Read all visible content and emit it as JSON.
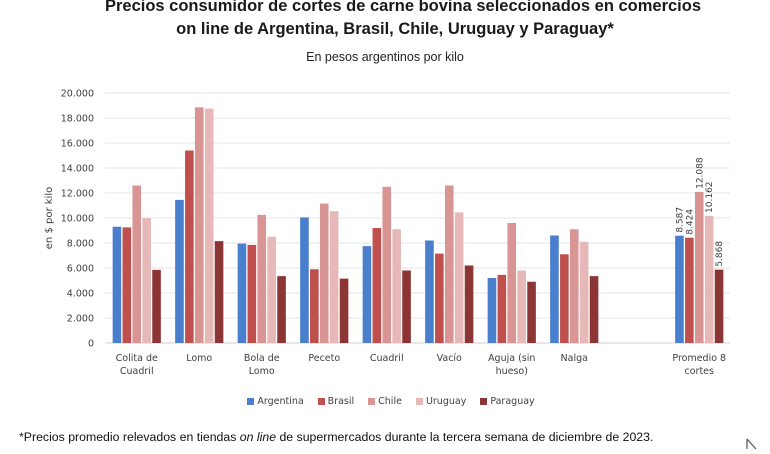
{
  "title_line1": "Precios consumidor de cortes de carne bovina seleccionados en comercios",
  "title_line2": "on line de Argentina, Brasil, Chile, Uruguay y Paraguay*",
  "footnote": {
    "before": "*Precios promedio relevados en tiendas ",
    "italic": "on line",
    "after": " de supermercados durante la tercera semana de diciembre de 2023."
  },
  "chart_data": {
    "type": "bar",
    "title": "Precios consumidor de cortes de carne bovina seleccionados en comercios on line de Argentina, Brasil, Chile, Uruguay y Paraguay*",
    "subtitle": "En pesos argentinos por kilo",
    "xlabel": "",
    "ylabel": "en $ por kilo",
    "ylim": [
      0,
      20000
    ],
    "yticks": [
      0,
      2000,
      4000,
      6000,
      8000,
      10000,
      12000,
      14000,
      16000,
      18000,
      20000
    ],
    "ytick_labels": [
      "0",
      "2.000",
      "4.000",
      "6.000",
      "8.000",
      "10.000",
      "12.000",
      "14.000",
      "16.000",
      "18.000",
      "20.000"
    ],
    "grid": true,
    "legend_position": "bottom",
    "categories": [
      [
        "Colita de",
        "Cuadril"
      ],
      [
        "Lomo"
      ],
      [
        "Bola de",
        "Lomo"
      ],
      [
        "Peceto"
      ],
      [
        "Cuadril"
      ],
      [
        "Vacío"
      ],
      [
        "Aguja (sin",
        "hueso)"
      ],
      [
        "Nalga"
      ],
      [],
      [
        "Promedio 8",
        "cortes"
      ]
    ],
    "series": [
      {
        "name": "Argentina",
        "color": "#4a7fcd",
        "values": [
          9300,
          11450,
          7950,
          10050,
          7750,
          8200,
          5200,
          8600,
          null,
          8587
        ]
      },
      {
        "name": "Brasil",
        "color": "#c0504d",
        "values": [
          9250,
          15400,
          7850,
          5900,
          9200,
          7150,
          5450,
          7100,
          null,
          8424
        ]
      },
      {
        "name": "Chile",
        "color": "#d99594",
        "values": [
          12600,
          18850,
          10250,
          11150,
          12500,
          12600,
          9600,
          9100,
          null,
          12088
        ]
      },
      {
        "name": "Uruguay",
        "color": "#e6b9b8",
        "values": [
          10000,
          18750,
          8500,
          10550,
          9100,
          10450,
          5800,
          8100,
          null,
          10162
        ]
      },
      {
        "name": "Paraguay",
        "color": "#8c3535",
        "values": [
          5850,
          8150,
          5350,
          5150,
          5800,
          6200,
          4900,
          5350,
          null,
          5868
        ]
      }
    ],
    "data_labels": {
      "category_index": 9,
      "labels": [
        "8.587",
        "8.424",
        "12.088",
        "10.162",
        "5.868"
      ]
    }
  }
}
